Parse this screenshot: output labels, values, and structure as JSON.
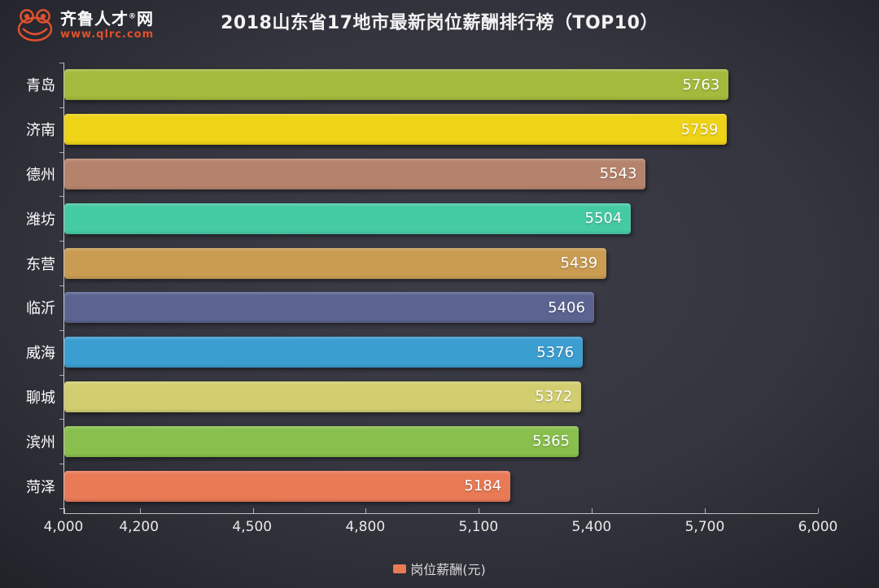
{
  "header": {
    "logo": {
      "brand_main": "齐鲁人才",
      "brand_reg": "®",
      "brand_suffix": "网",
      "url": "www.qlrc.com",
      "accent_color": "#e0512e"
    },
    "title": "2018山东省17地市最新岗位薪酬排行榜（TOP10）"
  },
  "chart_data": {
    "type": "bar",
    "orientation": "horizontal",
    "title": "2018山东省17地市最新岗位薪酬排行榜（TOP10）",
    "series_name": "岗位薪酬(元)",
    "categories": [
      "青岛",
      "济南",
      "德州",
      "潍坊",
      "东营",
      "临沂",
      "威海",
      "聊城",
      "滨州",
      "菏泽"
    ],
    "values": [
      5763,
      5759,
      5543,
      5504,
      5439,
      5406,
      5376,
      5372,
      5365,
      5184
    ],
    "bar_colors": [
      "#a2bb3d",
      "#eed316",
      "#b5836b",
      "#45cba4",
      "#c99c52",
      "#5b6490",
      "#3b9ed1",
      "#d2ce70",
      "#89c04d",
      "#e87a56"
    ],
    "xlim": [
      4000,
      6000
    ],
    "x_ticks": [
      {
        "label": "4,000",
        "value": 4000
      },
      {
        "label": "4,200",
        "value": 4200
      },
      {
        "label": "4,500",
        "value": 4500
      },
      {
        "label": "4,800",
        "value": 4800
      },
      {
        "label": "5,100",
        "value": 5100
      },
      {
        "label": "5,400",
        "value": 5400
      },
      {
        "label": "5,700",
        "value": 5700
      },
      {
        "label": "6,000",
        "value": 6000
      }
    ],
    "grid": false,
    "legend_position": "bottom",
    "value_labels": "inside-end"
  },
  "legend": {
    "label": "岗位薪酬(元)",
    "swatch_color": "#e87a56"
  }
}
